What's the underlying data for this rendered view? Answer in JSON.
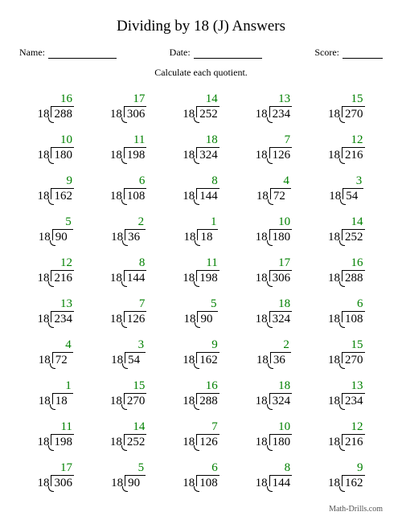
{
  "title": "Dividing by 18 (J) Answers",
  "meta": {
    "name_label": "Name:",
    "date_label": "Date:",
    "score_label": "Score:"
  },
  "instruction": "Calculate each quotient.",
  "quotient_color": "#008000",
  "divisor": "18",
  "problems": [
    [
      {
        "q": "16",
        "d": "288"
      },
      {
        "q": "17",
        "d": "306"
      },
      {
        "q": "14",
        "d": "252"
      },
      {
        "q": "13",
        "d": "234"
      },
      {
        "q": "15",
        "d": "270"
      }
    ],
    [
      {
        "q": "10",
        "d": "180"
      },
      {
        "q": "11",
        "d": "198"
      },
      {
        "q": "18",
        "d": "324"
      },
      {
        "q": "7",
        "d": "126"
      },
      {
        "q": "12",
        "d": "216"
      }
    ],
    [
      {
        "q": "9",
        "d": "162"
      },
      {
        "q": "6",
        "d": "108"
      },
      {
        "q": "8",
        "d": "144"
      },
      {
        "q": "4",
        "d": "72"
      },
      {
        "q": "3",
        "d": "54"
      }
    ],
    [
      {
        "q": "5",
        "d": "90"
      },
      {
        "q": "2",
        "d": "36"
      },
      {
        "q": "1",
        "d": "18"
      },
      {
        "q": "10",
        "d": "180"
      },
      {
        "q": "14",
        "d": "252"
      }
    ],
    [
      {
        "q": "12",
        "d": "216"
      },
      {
        "q": "8",
        "d": "144"
      },
      {
        "q": "11",
        "d": "198"
      },
      {
        "q": "17",
        "d": "306"
      },
      {
        "q": "16",
        "d": "288"
      }
    ],
    [
      {
        "q": "13",
        "d": "234"
      },
      {
        "q": "7",
        "d": "126"
      },
      {
        "q": "5",
        "d": "90"
      },
      {
        "q": "18",
        "d": "324"
      },
      {
        "q": "6",
        "d": "108"
      }
    ],
    [
      {
        "q": "4",
        "d": "72"
      },
      {
        "q": "3",
        "d": "54"
      },
      {
        "q": "9",
        "d": "162"
      },
      {
        "q": "2",
        "d": "36"
      },
      {
        "q": "15",
        "d": "270"
      }
    ],
    [
      {
        "q": "1",
        "d": "18"
      },
      {
        "q": "15",
        "d": "270"
      },
      {
        "q": "16",
        "d": "288"
      },
      {
        "q": "18",
        "d": "324"
      },
      {
        "q": "13",
        "d": "234"
      }
    ],
    [
      {
        "q": "11",
        "d": "198"
      },
      {
        "q": "14",
        "d": "252"
      },
      {
        "q": "7",
        "d": "126"
      },
      {
        "q": "10",
        "d": "180"
      },
      {
        "q": "12",
        "d": "216"
      }
    ],
    [
      {
        "q": "17",
        "d": "306"
      },
      {
        "q": "5",
        "d": "90"
      },
      {
        "q": "6",
        "d": "108"
      },
      {
        "q": "8",
        "d": "144"
      },
      {
        "q": "9",
        "d": "162"
      }
    ]
  ],
  "footer": "Math-Drills.com"
}
